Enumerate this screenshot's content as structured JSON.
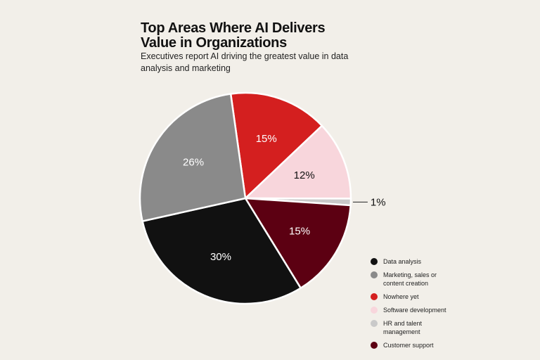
{
  "chart_data": {
    "type": "pie",
    "title": "Top Areas Where AI Delivers Value in Organizations",
    "subtitle": "Executives report AI driving the greatest value in data analysis and marketing",
    "categories": [
      "Data analysis",
      "Marketing, sales or content creation",
      "Nowhere yet",
      "Software development",
      "HR and talent management",
      "Customer support"
    ],
    "values": [
      30,
      26,
      15,
      12,
      1,
      15
    ],
    "value_labels": [
      "30%",
      "26%",
      "15%",
      "12%",
      "1%",
      "15%"
    ],
    "colors": [
      "#111111",
      "#8a8a8a",
      "#d41f1f",
      "#f8d6dc",
      "#c9c9c9",
      "#5c0012"
    ],
    "legend": "bottom-right"
  }
}
